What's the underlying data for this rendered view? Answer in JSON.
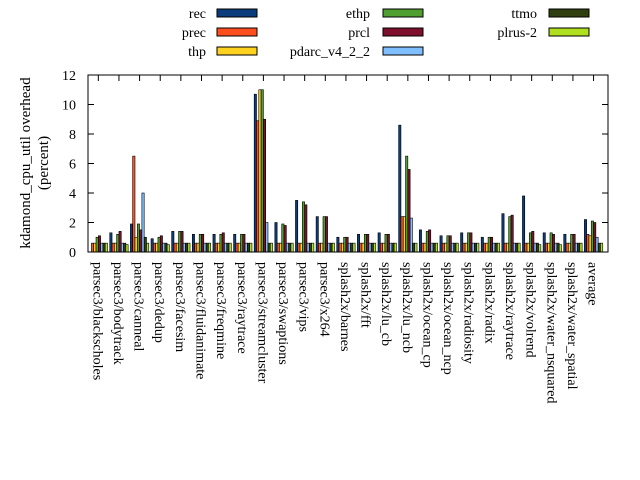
{
  "chart_data": {
    "type": "bar",
    "title": "",
    "xlabel": "",
    "ylabel": "kdamond_cpu_util overhead",
    "ylabel_unit": "(percent)",
    "ylim": [
      0,
      12
    ],
    "yticks": [
      0,
      2,
      4,
      6,
      8,
      10,
      12
    ],
    "grid": false,
    "legend_position": "top",
    "categories": [
      "parsec3/blackscholes",
      "parsec3/bodytrack",
      "parsec3/canneal",
      "parsec3/dedup",
      "parsec3/facesim",
      "parsec3/fluidanimate",
      "parsec3/freqmine",
      "parsec3/raytrace",
      "parsec3/streamcluster",
      "parsec3/swaptions",
      "parsec3/vips",
      "parsec3/x264",
      "splash2x/barnes",
      "splash2x/fft",
      "splash2x/lu_cb",
      "splash2x/lu_ncb",
      "splash2x/ocean_cp",
      "splash2x/ocean_ncp",
      "splash2x/radiosity",
      "splash2x/radix",
      "splash2x/raytrace",
      "splash2x/volrend",
      "splash2x/water_nsquared",
      "splash2x/water_spatial",
      "average"
    ],
    "series": [
      {
        "name": "rec",
        "color": "#0b3d7a",
        "values": [
          0,
          1.3,
          1.9,
          0.9,
          1.4,
          1.2,
          1.2,
          1.2,
          10.7,
          2.0,
          3.5,
          2.4,
          1.0,
          1.2,
          1.3,
          8.6,
          1.5,
          1.1,
          1.3,
          1.0,
          2.6,
          3.8,
          1.3,
          1.2,
          2.2
        ]
      },
      {
        "name": "prec",
        "color": "#ff4f1f",
        "values": [
          0.6,
          0.6,
          6.5,
          0.6,
          0.6,
          0.6,
          0.6,
          0.6,
          8.9,
          0.6,
          0.6,
          0.6,
          0.6,
          0.6,
          0.6,
          2.4,
          0.6,
          0.6,
          0.6,
          0.6,
          0.6,
          0.6,
          0.6,
          0.6,
          1.2
        ]
      },
      {
        "name": "thp",
        "color": "#ffd21f",
        "values": [
          0.6,
          0.6,
          1.0,
          0.6,
          0.6,
          0.6,
          0.6,
          0.6,
          11.0,
          0.6,
          0.6,
          0.6,
          0.6,
          0.6,
          0.6,
          2.4,
          0.6,
          0.6,
          0.6,
          0.6,
          0.6,
          0.6,
          0.6,
          0.6,
          1.1
        ]
      },
      {
        "name": "ethp",
        "color": "#4f9f2f",
        "values": [
          1.0,
          1.2,
          1.9,
          1.0,
          1.4,
          1.2,
          1.2,
          1.2,
          11.0,
          1.9,
          3.4,
          2.4,
          1.0,
          1.2,
          1.2,
          6.5,
          1.4,
          1.1,
          1.3,
          1.0,
          2.4,
          1.3,
          1.3,
          1.2,
          2.1
        ]
      },
      {
        "name": "prcl",
        "color": "#7f0f2f",
        "values": [
          1.1,
          1.4,
          1.5,
          1.1,
          1.4,
          1.2,
          1.3,
          1.2,
          9.0,
          1.8,
          3.2,
          2.4,
          1.0,
          1.2,
          1.2,
          5.6,
          1.5,
          1.1,
          1.3,
          1.0,
          2.5,
          1.4,
          1.2,
          1.2,
          2.0
        ]
      },
      {
        "name": "pdarc_v4_2_2",
        "color": "#7fbfff",
        "values": [
          0.6,
          0.6,
          4.0,
          0.6,
          0.6,
          0.6,
          0.6,
          0.6,
          2.0,
          0.6,
          0.6,
          0.6,
          0.6,
          0.6,
          0.6,
          2.3,
          0.6,
          0.6,
          0.6,
          0.6,
          0.6,
          0.6,
          0.6,
          0.6,
          1.0
        ]
      },
      {
        "name": "ttmo",
        "color": "#2f3f0f",
        "values": [
          0.6,
          0.6,
          1.0,
          0.6,
          0.6,
          0.6,
          0.6,
          0.6,
          0.6,
          0.6,
          0.6,
          0.6,
          0.6,
          0.6,
          0.6,
          0.6,
          0.6,
          0.6,
          0.6,
          0.6,
          0.6,
          0.6,
          0.6,
          0.6,
          0.6
        ]
      },
      {
        "name": "plrus-2",
        "color": "#afdf1f",
        "values": [
          0.6,
          0.5,
          0.6,
          0.5,
          0.6,
          0.6,
          0.6,
          0.6,
          0.6,
          0.6,
          0.6,
          0.6,
          0.6,
          0.6,
          0.6,
          0.6,
          0.6,
          0.6,
          0.6,
          0.6,
          0.6,
          0.5,
          0.5,
          0.6,
          0.6
        ]
      }
    ]
  }
}
